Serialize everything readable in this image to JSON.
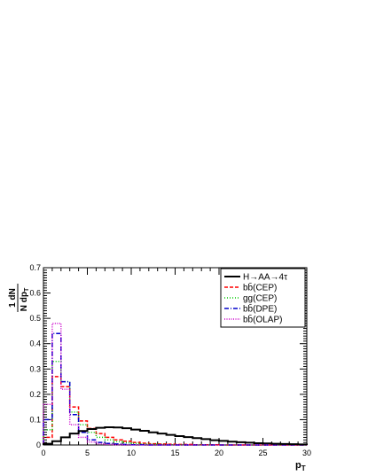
{
  "chart_data": {
    "type": "line",
    "style": "step-histogram",
    "xlabel": "p",
    "xlabel_sub": "T",
    "ylabel_numerator": "1 dN",
    "ylabel_denominator": "N dp",
    "ylabel_denominator_sub": "T",
    "xlim": [
      0,
      30
    ],
    "ylim": [
      0,
      0.7
    ],
    "x_ticks": [
      0,
      5,
      10,
      15,
      20,
      25,
      30
    ],
    "x_tick_labels": [
      "0",
      "5",
      "10",
      "15",
      "20",
      "25",
      "30"
    ],
    "y_ticks": [
      0,
      0.1,
      0.2,
      0.3,
      0.4,
      0.5,
      0.6,
      0.7
    ],
    "y_tick_labels": [
      "0",
      "0.1",
      "0.2",
      "0.3",
      "0.4",
      "0.5",
      "0.6",
      "0.7"
    ],
    "grid": false,
    "legend_position": "top-right",
    "bin_edges": [
      0,
      1,
      2,
      3,
      4,
      5,
      6,
      7,
      8,
      9,
      10,
      11,
      12,
      13,
      14,
      15,
      16,
      17,
      18,
      19,
      20,
      21,
      22,
      23,
      24,
      25,
      26,
      27,
      28,
      29,
      30
    ],
    "series": [
      {
        "name": "H→AA→4τ",
        "color": "#000000",
        "dash": "",
        "width": 2,
        "values": [
          0.005,
          0.015,
          0.03,
          0.045,
          0.055,
          0.063,
          0.068,
          0.07,
          0.069,
          0.066,
          0.061,
          0.056,
          0.05,
          0.045,
          0.04,
          0.035,
          0.031,
          0.027,
          0.023,
          0.019,
          0.016,
          0.013,
          0.011,
          0.009,
          0.007,
          0.006,
          0.005,
          0.004,
          0.003,
          0.002
        ]
      },
      {
        "name": "bb̄(CEP)",
        "color": "#ff0000",
        "dash": "4,2",
        "width": 1.5,
        "values": [
          0.03,
          0.27,
          0.23,
          0.15,
          0.095,
          0.065,
          0.045,
          0.03,
          0.02,
          0.015,
          0.01,
          0.007,
          0.005,
          0.004,
          0.003,
          0.002,
          0.002,
          0.001,
          0.001,
          0.001,
          0.0,
          0.0,
          0.0,
          0.0,
          0.0,
          0.0,
          0.0,
          0.0,
          0.0,
          0.0
        ]
      },
      {
        "name": "gg(CEP)",
        "color": "#00cc00",
        "dash": "1,2",
        "width": 1.5,
        "values": [
          0.06,
          0.33,
          0.25,
          0.13,
          0.08,
          0.05,
          0.03,
          0.02,
          0.013,
          0.009,
          0.006,
          0.004,
          0.003,
          0.002,
          0.001,
          0.001,
          0.0,
          0.0,
          0.0,
          0.0,
          0.0,
          0.0,
          0.0,
          0.0,
          0.0,
          0.0,
          0.0,
          0.0,
          0.0,
          0.0
        ]
      },
      {
        "name": "bb̄(DPE)",
        "color": "#0000cc",
        "dash": "5,2,1,2",
        "width": 1.5,
        "values": [
          0.1,
          0.44,
          0.25,
          0.12,
          0.05,
          0.02,
          0.01,
          0.006,
          0.004,
          0.002,
          0.001,
          0.001,
          0.0,
          0.0,
          0.0,
          0.0,
          0.0,
          0.0,
          0.0,
          0.0,
          0.0,
          0.0,
          0.0,
          0.0,
          0.0,
          0.0,
          0.0,
          0.0,
          0.0,
          0.0
        ]
      },
      {
        "name": "bb̄(OLAP)",
        "color": "#cc00cc",
        "dash": "1,1.5",
        "width": 1.5,
        "values": [
          0.16,
          0.48,
          0.22,
          0.08,
          0.03,
          0.012,
          0.005,
          0.002,
          0.001,
          0.0,
          0.0,
          0.0,
          0.0,
          0.0,
          0.0,
          0.0,
          0.0,
          0.0,
          0.0,
          0.0,
          0.0,
          0.0,
          0.0,
          0.0,
          0.0,
          0.0,
          0.0,
          0.0,
          0.0,
          0.0
        ]
      }
    ]
  }
}
